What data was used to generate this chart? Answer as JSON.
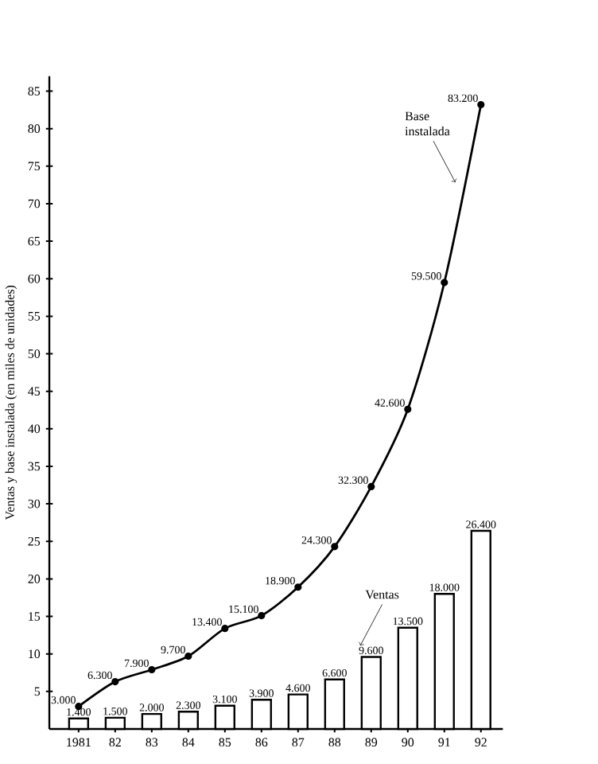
{
  "chart_data": {
    "type": "bar",
    "ylabel": "Ventas y base instalada (en miles de unidades)",
    "categories": [
      "1981",
      "82",
      "83",
      "84",
      "85",
      "86",
      "87",
      "88",
      "89",
      "90",
      "91",
      "92"
    ],
    "series": [
      {
        "name": "Ventas",
        "color": "#000000",
        "values": [
          1.4,
          1.5,
          2.0,
          2.3,
          3.1,
          3.9,
          4.6,
          6.6,
          9.6,
          13.5,
          18.0,
          26.4
        ],
        "value_labels": [
          "1.400",
          "1.500",
          "2.000",
          "2.300",
          "3.100",
          "3.900",
          "4.600",
          "6.600",
          "9.600",
          "13.500",
          "18.000",
          "26.400"
        ]
      },
      {
        "name": "Base instalada",
        "type": "line",
        "color": "#000000",
        "marker": "circle",
        "values": [
          3.0,
          6.3,
          7.9,
          9.7,
          13.4,
          15.1,
          18.9,
          24.3,
          32.3,
          42.6,
          59.5,
          83.2
        ],
        "value_labels": [
          "3.000",
          "6.300",
          "7.900",
          "9.700",
          "13.400",
          "15.100",
          "18.900",
          "24.300",
          "32.300",
          "42.600",
          "59.500",
          "83.200"
        ]
      }
    ],
    "ylim": [
      0,
      87
    ],
    "yticks": [
      5,
      10,
      15,
      20,
      25,
      30,
      35,
      40,
      45,
      50,
      55,
      60,
      65,
      70,
      75,
      80,
      85
    ],
    "grid": false
  }
}
